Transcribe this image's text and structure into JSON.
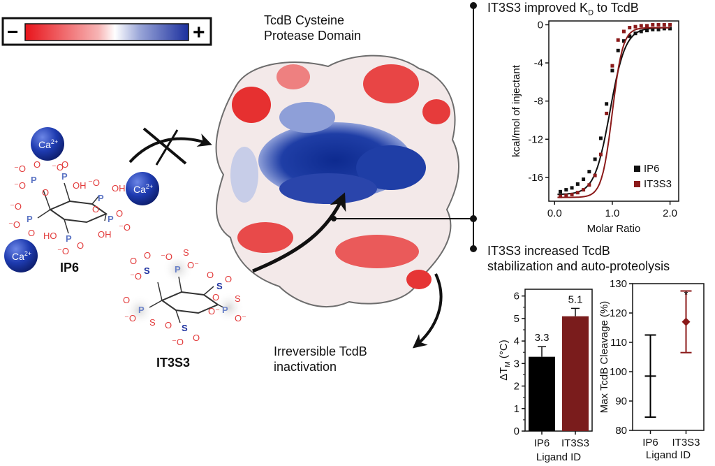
{
  "scale_bar": {
    "minus": "−",
    "plus": "+",
    "colors": [
      "#e8141b",
      "#ffffff",
      "#1b2f9e"
    ]
  },
  "protein": {
    "title_line1": "TcdB Cysteine",
    "title_line2": "Protease Domain"
  },
  "outcome": {
    "line1": "Irreversible TcdB",
    "line2": "inactivation"
  },
  "ions": [
    "Ca2+",
    "Ca2+",
    "Ca2+"
  ],
  "ligands": {
    "ip6": "IP6",
    "it3s3": "IT3S3"
  },
  "itc": {
    "title": "IT3S3 improved K",
    "title_sub": "D",
    "title_tail": " to TcdB",
    "ylabel": "kcal/mol of injectant",
    "xlabel": "Molar Ratio",
    "legend": [
      "IP6",
      "IT3S3"
    ]
  },
  "stab": {
    "line1": "IT3S3 increased TcdB",
    "line2": "stabilization and auto-proteolysis"
  },
  "chart_data": [
    {
      "type": "scatter",
      "title": "IT3S3 improved KD to TcdB",
      "xlabel": "Molar Ratio",
      "ylabel": "kcal/mol of injectant",
      "xlim": [
        -0.1,
        2.15
      ],
      "ylim": [
        -18.5,
        0.4
      ],
      "xticks": [
        "0.0",
        "1.0",
        "2.0"
      ],
      "yticks": [
        "0",
        "-4",
        "-8",
        "-12",
        "-16"
      ],
      "series": [
        {
          "name": "IP6",
          "color": "#111111",
          "x": [
            0.1,
            0.2,
            0.3,
            0.4,
            0.5,
            0.6,
            0.7,
            0.8,
            0.9,
            1.0,
            1.1,
            1.2,
            1.3,
            1.4,
            1.5,
            1.6,
            1.7,
            1.8,
            1.9,
            2.0
          ],
          "y": [
            -17.5,
            -17.3,
            -17.1,
            -16.7,
            -16.2,
            -15.4,
            -14.1,
            -11.9,
            -8.3,
            -4.8,
            -2.7,
            -1.7,
            -1.2,
            -0.9,
            -0.7,
            -0.6,
            -0.5,
            -0.5,
            -0.4,
            -0.4
          ]
        },
        {
          "name": "IT3S3",
          "color": "#8b1a1a",
          "x": [
            0.1,
            0.2,
            0.3,
            0.4,
            0.5,
            0.6,
            0.7,
            0.8,
            0.9,
            1.0,
            1.1,
            1.2,
            1.3,
            1.4,
            1.5,
            1.6,
            1.7,
            1.8,
            1.9,
            2.0
          ],
          "y": [
            -18.0,
            -17.9,
            -17.8,
            -17.6,
            -17.3,
            -16.8,
            -15.8,
            -13.6,
            -9.3,
            -4.3,
            -1.6,
            -0.7,
            -0.3,
            -0.2,
            -0.1,
            -0.1,
            0.0,
            0.0,
            0.0,
            0.0
          ]
        }
      ],
      "legend": "bottom-right"
    },
    {
      "type": "bar",
      "xlabel": "Ligand ID",
      "ylabel": "ΔTM (°C)",
      "ylabel_main": "ΔT",
      "ylabel_sub": "M",
      "ylabel_tail": " (°C)",
      "categories": [
        "IP6",
        "IT3S3"
      ],
      "values": [
        3.3,
        5.1
      ],
      "errors": [
        0.45,
        0.35
      ],
      "labels": [
        "3.3",
        "5.1"
      ],
      "colors": [
        "#000000",
        "#7a1c1c"
      ],
      "ylim": [
        0,
        6.3
      ],
      "yticks": [
        "0",
        "1",
        "2",
        "3",
        "4",
        "5",
        "6"
      ]
    },
    {
      "type": "scatter",
      "xlabel": "Ligand ID",
      "ylabel": "Max TcdB Cleavage (%)",
      "categories": [
        "IP6",
        "IT3S3"
      ],
      "values": [
        98.5,
        117
      ],
      "err_low": [
        84.5,
        106.5
      ],
      "err_high": [
        112.5,
        127.5
      ],
      "colors": [
        "#000000",
        "#8b1a1a"
      ],
      "annotation": "*",
      "ylim": [
        80,
        130
      ],
      "yticks": [
        "80",
        "90",
        "100",
        "110",
        "120",
        "130"
      ]
    }
  ]
}
